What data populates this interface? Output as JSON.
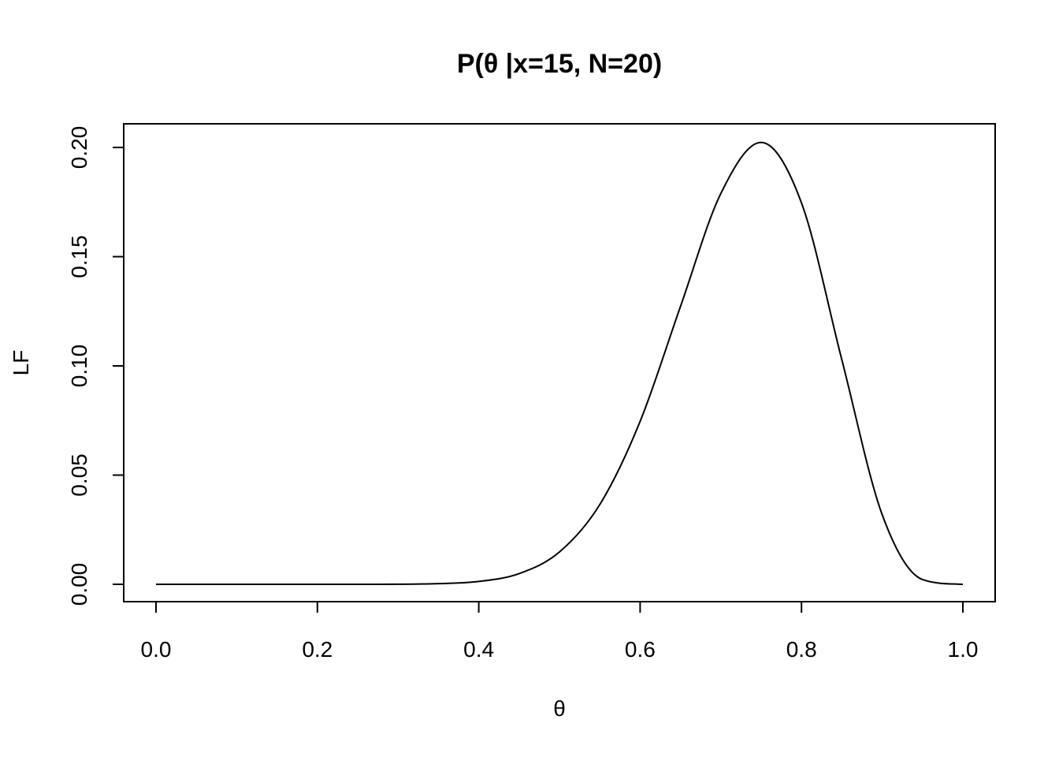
{
  "chart_data": {
    "type": "line",
    "title": "P(θ |x=15, N=20)",
    "xlabel": "θ",
    "ylabel": "LF",
    "xlim": [
      0,
      1
    ],
    "ylim": [
      0,
      0.2
    ],
    "x_ticks": [
      0.0,
      0.2,
      0.4,
      0.6,
      0.8,
      1.0
    ],
    "x_tick_labels": [
      "0.0",
      "0.2",
      "0.4",
      "0.6",
      "0.8",
      "1.0"
    ],
    "y_ticks": [
      0.0,
      0.05,
      0.1,
      0.15,
      0.2
    ],
    "y_tick_labels": [
      "0.00",
      "0.05",
      "0.10",
      "0.15",
      "0.20"
    ],
    "grid": false,
    "series": [
      {
        "color": "#000000",
        "x": [
          0.0,
          0.05,
          0.1,
          0.15,
          0.2,
          0.25,
          0.3,
          0.35,
          0.4,
          0.45,
          0.5,
          0.55,
          0.6,
          0.65,
          0.7,
          0.75,
          0.8,
          0.85,
          0.9,
          0.95,
          1.0
        ],
        "y": [
          0.0,
          0.0,
          0.0,
          0.0,
          0.0,
          0.0,
          4e-05,
          0.0003,
          0.0013,
          0.0049,
          0.0148,
          0.0365,
          0.0746,
          0.1272,
          0.1789,
          0.2023,
          0.1746,
          0.1028,
          0.0319,
          0.0022,
          0.0
        ]
      }
    ]
  }
}
